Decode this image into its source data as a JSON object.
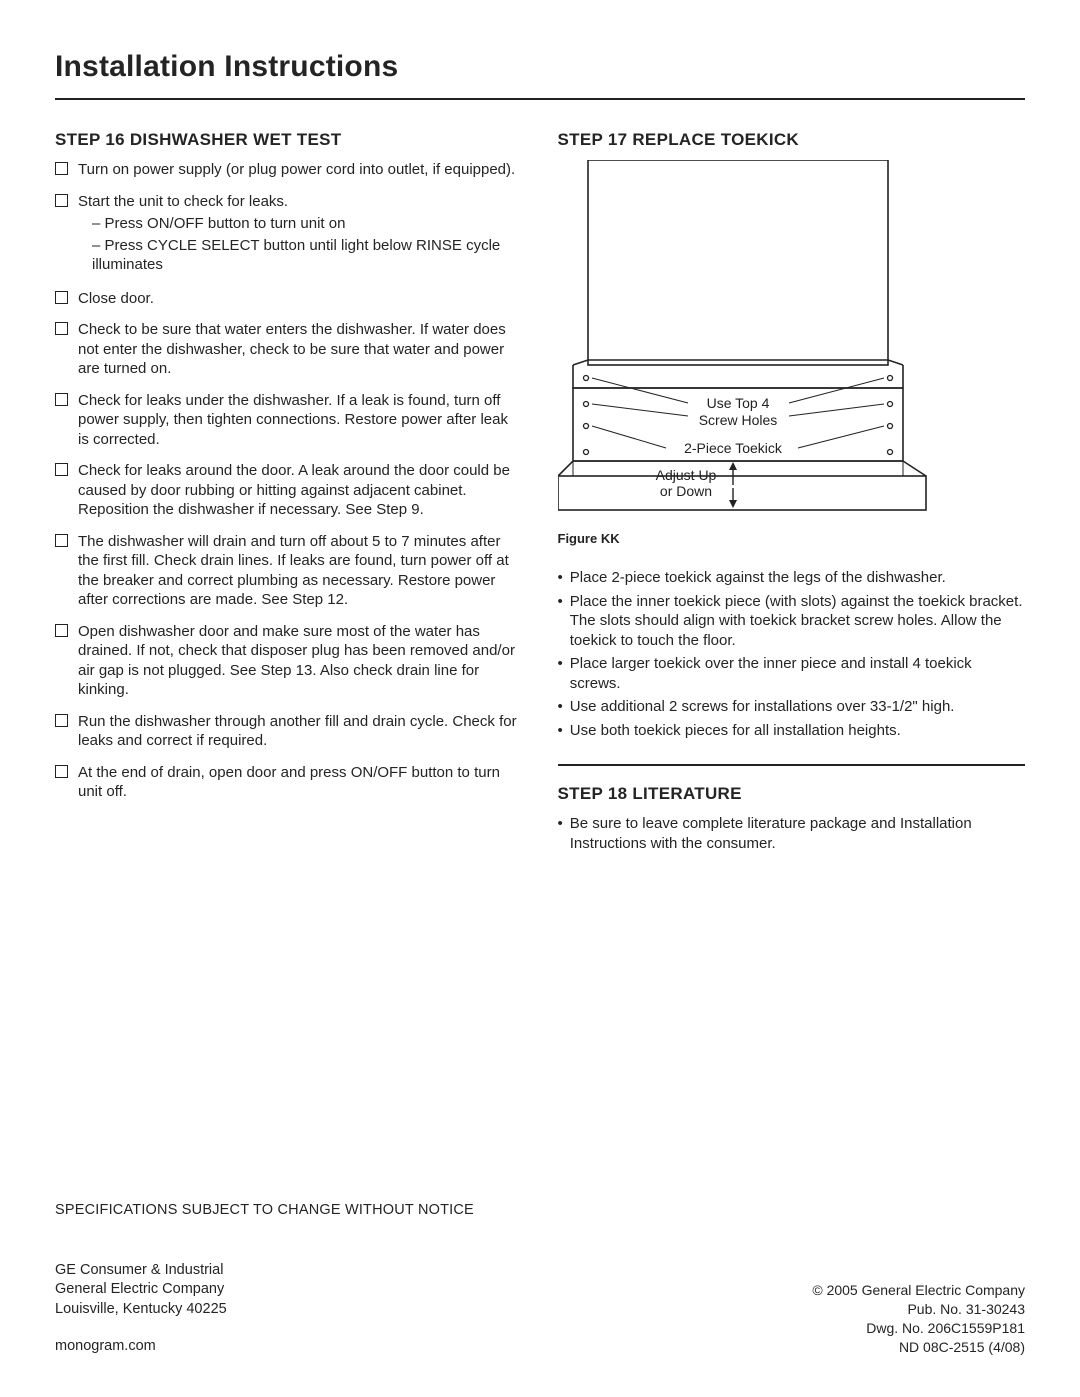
{
  "page_title": "Installation Instructions",
  "step16": {
    "heading": "STEP 16 DISHWASHER WET TEST",
    "items": [
      {
        "text": "Turn on power supply (or plug power cord into outlet, if equipped)."
      },
      {
        "text": "Start the unit to check for leaks.",
        "subs": [
          "Press ON/OFF button to turn unit on",
          "Press CYCLE SELECT button until light below RINSE cycle illuminates"
        ]
      },
      {
        "text": "Close door."
      },
      {
        "text": "Check to be sure that water enters the dishwasher. If water does not enter the dishwasher, check to be sure that water and power are turned on."
      },
      {
        "text": "Check for leaks under the dishwasher. If a leak is found, turn off power supply, then tighten connections. Restore power after leak is corrected."
      },
      {
        "text": "Check for leaks around the door. A leak around the door could be caused by door rubbing or hitting against adjacent cabinet. Reposition the dishwasher if necessary. See Step 9."
      },
      {
        "text": "The dishwasher will drain and turn off about 5 to 7 minutes after the first fill. Check drain lines. If leaks are found, turn power off at the breaker and correct plumbing as necessary. Restore power after corrections are made. See Step 12."
      },
      {
        "text": "Open dishwasher door and make sure most of the water has drained. If not, check that disposer plug has been removed and/or air gap is not plugged. See Step 13. Also check drain line for kinking."
      },
      {
        "text": "Run the dishwasher through another fill and drain cycle. Check for leaks and correct if required."
      },
      {
        "text": "At the end of drain, open door and press ON/OFF button to turn unit off."
      }
    ]
  },
  "step17": {
    "heading": "STEP 17 REPLACE TOEKICK",
    "figure_caption": "Figure KK",
    "figure_labels": {
      "top4": "Use Top 4",
      "screwholes": "Screw Holes",
      "toekick": "2-Piece Toekick",
      "adjust1": "Adjust Up",
      "adjust2": "or Down"
    },
    "bullets": [
      "Place 2-piece toekick against the legs of the dishwasher.",
      "Place the inner toekick piece (with slots) against the toekick bracket. The slots should align with toekick bracket screw holes. Allow the toekick to touch the floor.",
      "Place larger toekick over the inner piece and install 4 toekick screws.",
      "Use additional 2 screws for installations over 33-1/2\" high.",
      "Use both toekick pieces for all installation heights."
    ]
  },
  "step18": {
    "heading": "STEP 18 LITERATURE",
    "bullets": [
      "Be sure to leave complete literature package and Installation Instructions with the consumer."
    ]
  },
  "footer": {
    "spec_note": "SPECIFICATIONS SUBJECT TO CHANGE WITHOUT NOTICE",
    "company1": "GE Consumer & Industrial",
    "company2": "General Electric Company",
    "address": "Louisville, Kentucky 40225",
    "website": "monogram.com",
    "copyright": "© 2005 General Electric Company",
    "pub": "Pub. No. 31-30243",
    "dwg": "Dwg. No. 206C1559P181",
    "nd": "ND 08C-2515 (4/08)"
  },
  "colors": {
    "text": "#242424",
    "border": "#222222",
    "bg": "#ffffff"
  }
}
